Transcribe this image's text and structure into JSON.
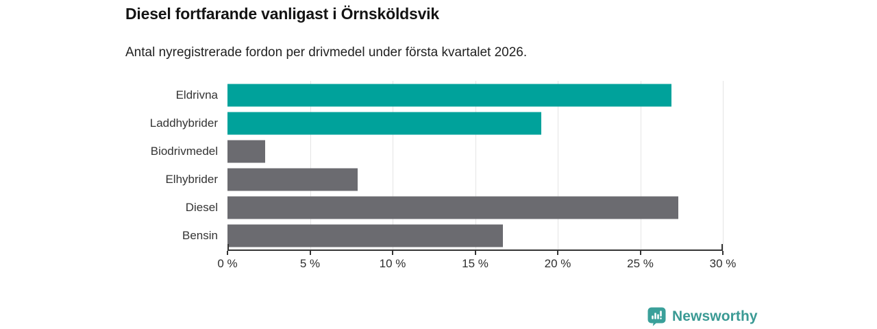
{
  "header": {
    "title": "Diesel fortfarande vanligast i Örnsköldsvik",
    "subtitle": "Antal nyregistrerade fordon per drivmedel under första kvartalet 2026."
  },
  "chart_data": {
    "type": "bar",
    "orientation": "horizontal",
    "title": "Diesel fortfarande vanligast i Örnsköldsvik",
    "subtitle": "Antal nyregistrerade fordon per drivmedel under första kvartalet 2026.",
    "categories": [
      "Eldrivna",
      "Laddhybrider",
      "Biodrivmedel",
      "Elhybrider",
      "Diesel",
      "Bensin"
    ],
    "values": [
      26.9,
      19.0,
      2.3,
      7.9,
      27.3,
      16.7
    ],
    "unit": "%",
    "bar_colors": [
      "#00a29b",
      "#00a29b",
      "#6b6b70",
      "#6b6b70",
      "#6b6b70",
      "#6b6b70"
    ],
    "xlim": [
      0,
      30
    ],
    "xticks": [
      0,
      5,
      10,
      15,
      20,
      25,
      30
    ],
    "xtick_labels": [
      "0 %",
      "5 %",
      "10 %",
      "15 %",
      "20 %",
      "25 %",
      "30 %"
    ],
    "grid": "vertical",
    "legend": "none"
  },
  "colors": {
    "accent_teal": "#00a29b",
    "bar_gray": "#6b6b70",
    "axis": "#333333",
    "gridline": "#e4e4e4",
    "brand_teal": "#3a9a94"
  },
  "footer": {
    "brand": "Newsworthy"
  }
}
